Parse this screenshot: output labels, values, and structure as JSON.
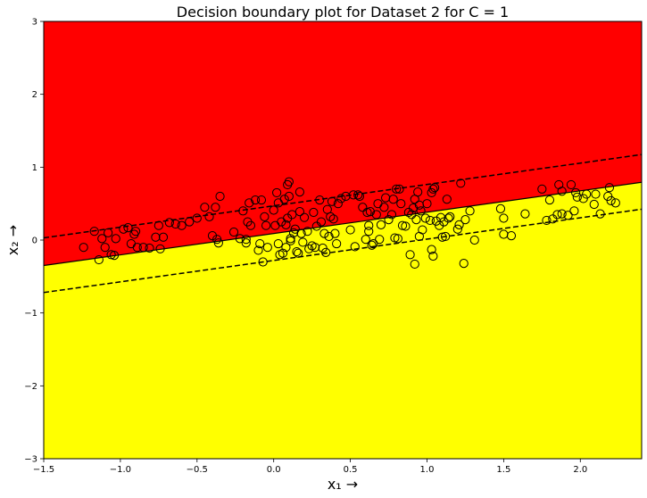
{
  "chart_data": {
    "type": "scatter",
    "title": "Decision boundary plot for Dataset 2 for C = 1",
    "xlabel": "x₁ →",
    "ylabel": "x₂ →",
    "xlim": [
      -1.5,
      2.4
    ],
    "ylim": [
      -3,
      3
    ],
    "x_ticks": [
      -1.5,
      -1.0,
      -0.5,
      0.0,
      0.5,
      1.0,
      1.5,
      2.0
    ],
    "x_tick_labels": [
      "−1.5",
      "−1.0",
      "−0.5",
      "0.0",
      "0.5",
      "1.0",
      "1.5",
      "2.0"
    ],
    "y_ticks": [
      -3,
      -2,
      -1,
      0,
      1,
      2,
      3
    ],
    "y_tick_labels": [
      "−3",
      "−2",
      "−1",
      "0",
      "1",
      "2",
      "3"
    ],
    "regions": {
      "upper_color": "#ff0000",
      "lower_color": "#ffff00"
    },
    "decision_boundary": {
      "slope": 0.293,
      "intercept": 0.09,
      "style": "solid"
    },
    "margins": [
      {
        "slope": 0.293,
        "intercept": 0.47,
        "style": "dashed"
      },
      {
        "slope": 0.293,
        "intercept": -0.28,
        "style": "dashed"
      }
    ],
    "points": [
      [
        -1.24,
        -0.1
      ],
      [
        -1.17,
        0.12
      ],
      [
        -1.14,
        -0.27
      ],
      [
        -1.12,
        0.02
      ],
      [
        -1.1,
        -0.1
      ],
      [
        -1.08,
        0.1
      ],
      [
        -1.06,
        -0.2
      ],
      [
        -1.04,
        -0.21
      ],
      [
        -1.03,
        0.02
      ],
      [
        -0.98,
        0.15
      ],
      [
        -0.95,
        0.17
      ],
      [
        -0.93,
        -0.05
      ],
      [
        -0.91,
        0.08
      ],
      [
        -0.9,
        0.12
      ],
      [
        -0.89,
        -0.1
      ],
      [
        -0.85,
        -0.1
      ],
      [
        -0.81,
        -0.11
      ],
      [
        -0.77,
        0.04
      ],
      [
        -0.75,
        0.2
      ],
      [
        -0.74,
        -0.12
      ],
      [
        -0.72,
        0.04
      ],
      [
        -0.68,
        0.24
      ],
      [
        -0.64,
        0.22
      ],
      [
        -0.6,
        0.2
      ],
      [
        -0.55,
        0.25
      ],
      [
        -0.5,
        0.3
      ],
      [
        -0.45,
        0.45
      ],
      [
        -0.42,
        0.32
      ],
      [
        -0.4,
        0.06
      ],
      [
        -0.38,
        0.45
      ],
      [
        -0.37,
        0.01
      ],
      [
        -0.36,
        -0.04
      ],
      [
        -0.35,
        0.6
      ],
      [
        -0.26,
        0.11
      ],
      [
        -0.22,
        0.02
      ],
      [
        -0.2,
        0.4
      ],
      [
        -0.18,
        0.01
      ],
      [
        -0.18,
        -0.04
      ],
      [
        -0.17,
        0.25
      ],
      [
        -0.16,
        0.51
      ],
      [
        -0.15,
        0.2
      ],
      [
        -0.12,
        0.55
      ],
      [
        -0.1,
        -0.14
      ],
      [
        -0.09,
        -0.05
      ],
      [
        -0.08,
        0.55
      ],
      [
        -0.07,
        -0.3
      ],
      [
        -0.06,
        0.32
      ],
      [
        -0.05,
        0.2
      ],
      [
        -0.04,
        -0.1
      ],
      [
        0.0,
        0.41
      ],
      [
        0.01,
        0.2
      ],
      [
        0.02,
        0.65
      ],
      [
        0.03,
        0.51
      ],
      [
        0.03,
        -0.05
      ],
      [
        0.04,
        -0.2
      ],
      [
        0.05,
        0.25
      ],
      [
        0.06,
        -0.18
      ],
      [
        0.07,
        0.56
      ],
      [
        0.08,
        0.21
      ],
      [
        0.08,
        -0.1
      ],
      [
        0.09,
        0.76
      ],
      [
        0.09,
        0.3
      ],
      [
        0.1,
        0.8
      ],
      [
        0.1,
        0.6
      ],
      [
        0.11,
        0.02
      ],
      [
        0.11,
        -0.01
      ],
      [
        0.12,
        0.35
      ],
      [
        0.13,
        0.1
      ],
      [
        0.14,
        0.15
      ],
      [
        0.15,
        -0.16
      ],
      [
        0.16,
        -0.18
      ],
      [
        0.17,
        0.66
      ],
      [
        0.17,
        0.39
      ],
      [
        0.18,
        0.09
      ],
      [
        0.19,
        -0.03
      ],
      [
        0.2,
        0.31
      ],
      [
        0.22,
        0.12
      ],
      [
        0.23,
        -0.12
      ],
      [
        0.25,
        -0.08
      ],
      [
        0.26,
        0.38
      ],
      [
        0.27,
        -0.1
      ],
      [
        0.28,
        0.19
      ],
      [
        0.3,
        0.55
      ],
      [
        0.31,
        0.25
      ],
      [
        0.32,
        -0.11
      ],
      [
        0.33,
        0.09
      ],
      [
        0.34,
        -0.17
      ],
      [
        0.35,
        0.42
      ],
      [
        0.36,
        0.05
      ],
      [
        0.37,
        0.32
      ],
      [
        0.38,
        0.53
      ],
      [
        0.39,
        0.29
      ],
      [
        0.4,
        0.09
      ],
      [
        0.41,
        -0.05
      ],
      [
        0.42,
        0.5
      ],
      [
        0.44,
        0.57
      ],
      [
        0.47,
        0.6
      ],
      [
        0.5,
        0.14
      ],
      [
        0.52,
        0.62
      ],
      [
        0.53,
        -0.09
      ],
      [
        0.55,
        0.62
      ],
      [
        0.56,
        0.6
      ],
      [
        0.58,
        0.45
      ],
      [
        0.6,
        0.01
      ],
      [
        0.61,
        0.38
      ],
      [
        0.62,
        0.2
      ],
      [
        0.62,
        0.12
      ],
      [
        0.63,
        0.39
      ],
      [
        0.64,
        -0.07
      ],
      [
        0.65,
        -0.05
      ],
      [
        0.67,
        0.35
      ],
      [
        0.68,
        0.5
      ],
      [
        0.69,
        0.01
      ],
      [
        0.7,
        0.21
      ],
      [
        0.72,
        0.45
      ],
      [
        0.73,
        0.58
      ],
      [
        0.75,
        0.28
      ],
      [
        0.77,
        0.35
      ],
      [
        0.78,
        0.56
      ],
      [
        0.79,
        0.03
      ],
      [
        0.8,
        0.7
      ],
      [
        0.81,
        0.02
      ],
      [
        0.82,
        0.7
      ],
      [
        0.83,
        0.5
      ],
      [
        0.84,
        0.2
      ],
      [
        0.86,
        0.19
      ],
      [
        0.88,
        0.38
      ],
      [
        0.89,
        -0.2
      ],
      [
        0.9,
        0.35
      ],
      [
        0.91,
        0.44
      ],
      [
        0.92,
        0.56
      ],
      [
        0.92,
        -0.33
      ],
      [
        0.93,
        0.28
      ],
      [
        0.94,
        0.66
      ],
      [
        0.95,
        0.48
      ],
      [
        0.95,
        0.05
      ],
      [
        0.96,
        0.4
      ],
      [
        0.97,
        0.14
      ],
      [
        0.99,
        0.3
      ],
      [
        1.0,
        0.5
      ],
      [
        1.02,
        0.27
      ],
      [
        1.03,
        0.65
      ],
      [
        1.03,
        -0.13
      ],
      [
        1.04,
        0.7
      ],
      [
        1.04,
        -0.22
      ],
      [
        1.05,
        0.72
      ],
      [
        1.06,
        0.26
      ],
      [
        1.08,
        0.2
      ],
      [
        1.09,
        0.31
      ],
      [
        1.1,
        0.04
      ],
      [
        1.11,
        0.25
      ],
      [
        1.12,
        0.05
      ],
      [
        1.13,
        0.56
      ],
      [
        1.14,
        0.3
      ],
      [
        1.15,
        0.32
      ],
      [
        1.2,
        0.15
      ],
      [
        1.21,
        0.21
      ],
      [
        1.22,
        0.78
      ],
      [
        1.24,
        -0.32
      ],
      [
        1.25,
        0.28
      ],
      [
        1.28,
        0.4
      ],
      [
        1.31,
        0.0
      ],
      [
        1.48,
        0.43
      ],
      [
        1.5,
        0.08
      ],
      [
        1.5,
        0.3
      ],
      [
        1.55,
        0.06
      ],
      [
        1.64,
        0.36
      ],
      [
        1.75,
        0.7
      ],
      [
        1.78,
        0.27
      ],
      [
        1.8,
        0.55
      ],
      [
        1.82,
        0.29
      ],
      [
        1.85,
        0.35
      ],
      [
        1.86,
        0.76
      ],
      [
        1.88,
        0.36
      ],
      [
        1.88,
        0.67
      ],
      [
        1.92,
        0.34
      ],
      [
        1.94,
        0.76
      ],
      [
        1.96,
        0.4
      ],
      [
        1.97,
        0.65
      ],
      [
        1.98,
        0.59
      ],
      [
        2.02,
        0.57
      ],
      [
        2.04,
        0.63
      ],
      [
        2.09,
        0.49
      ],
      [
        2.1,
        0.63
      ],
      [
        2.13,
        0.36
      ],
      [
        2.18,
        0.6
      ],
      [
        2.19,
        0.72
      ],
      [
        2.2,
        0.54
      ],
      [
        2.23,
        0.51
      ]
    ]
  }
}
